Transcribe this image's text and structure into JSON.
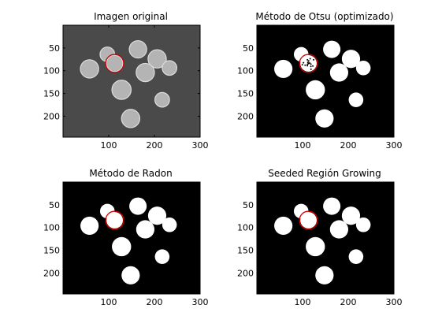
{
  "panels": [
    {
      "title": "Imagen original",
      "style": "grayscale",
      "xticks": [
        "100",
        "200",
        "300"
      ],
      "yticks": [
        "50",
        "100",
        "150",
        "200"
      ]
    },
    {
      "title": "Método de Otsu (optimizado)",
      "style": "binary",
      "xticks": [
        "100",
        "200",
        "300"
      ],
      "yticks": [
        "50",
        "100",
        "150",
        "200"
      ]
    },
    {
      "title": "Método de Radon",
      "style": "binary",
      "xticks": [
        "100",
        "200",
        "300"
      ],
      "yticks": [
        "50",
        "100",
        "150",
        "200"
      ]
    },
    {
      "title": "Seeded Región Growing",
      "style": "binary",
      "xticks": [
        "100",
        "200",
        "300"
      ],
      "yticks": [
        "50",
        "100",
        "150",
        "200"
      ]
    }
  ],
  "image_extent": {
    "width": 300,
    "height": 246
  },
  "xtick_values": [
    100,
    200,
    300
  ],
  "ytick_values": [
    50,
    100,
    150,
    200
  ],
  "coins": [
    {
      "cx": 164,
      "cy": 53,
      "r": 19
    },
    {
      "cx": 97,
      "cy": 64,
      "r": 16
    },
    {
      "cx": 206,
      "cy": 74,
      "r": 20
    },
    {
      "cx": 233,
      "cy": 94,
      "r": 16
    },
    {
      "cx": 58,
      "cy": 96,
      "r": 20
    },
    {
      "cx": 113,
      "cy": 84,
      "r": 18
    },
    {
      "cx": 180,
      "cy": 104,
      "r": 20
    },
    {
      "cx": 128,
      "cy": 142,
      "r": 21
    },
    {
      "cx": 217,
      "cy": 164,
      "r": 16
    },
    {
      "cx": 148,
      "cy": 205,
      "r": 20
    }
  ],
  "highlight": {
    "coin_index": 5,
    "color": "#cc0000"
  },
  "colors": {
    "bg_grayscale": "#4a4a4a",
    "coin_grayscale": "#b4b4b4",
    "bg_binary": "#000000",
    "coin_binary": "#ffffff"
  }
}
